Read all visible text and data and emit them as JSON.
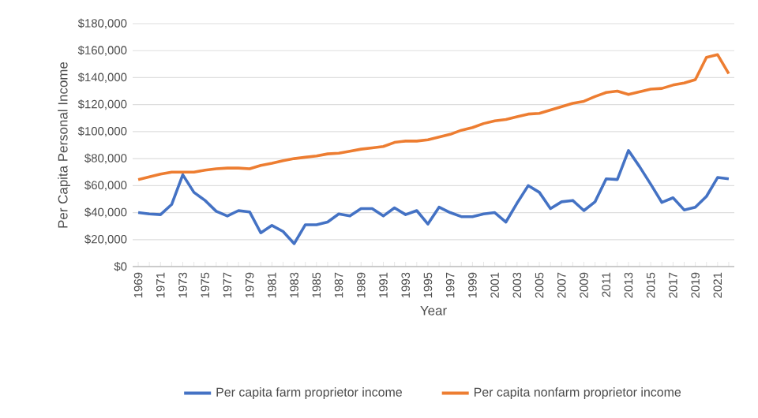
{
  "chart_data": {
    "type": "line",
    "xlabel": "Year",
    "ylabel": "Per Capita Personal Income",
    "categories": [
      "1969",
      null,
      "1971",
      null,
      "1973",
      null,
      "1975",
      null,
      "1977",
      null,
      "1979",
      null,
      "1981",
      null,
      "1983",
      null,
      "1985",
      null,
      "1987",
      null,
      "1989",
      null,
      "1991",
      null,
      "1993",
      null,
      "1995",
      null,
      "1997",
      null,
      "1999",
      null,
      "2001",
      null,
      "2003",
      null,
      "2005",
      null,
      "2007",
      null,
      "2009",
      null,
      "2011",
      null,
      "2013",
      null,
      "2015",
      null,
      "2017",
      null,
      "2019",
      null,
      "2021",
      null
    ],
    "series": [
      {
        "name": "Per capita farm proprietor income",
        "color": "#4472c4",
        "values": [
          40000,
          39000,
          38500,
          46000,
          68000,
          55000,
          49000,
          41000,
          37500,
          41500,
          40500,
          25000,
          30500,
          26000,
          17000,
          31000,
          31000,
          33000,
          39000,
          37500,
          43000,
          43000,
          37500,
          43500,
          38500,
          41500,
          31500,
          44000,
          40000,
          37000,
          37000,
          39000,
          40000,
          33000,
          47000,
          60000,
          55000,
          43000,
          48000,
          49000,
          41500,
          48000,
          65000,
          64500,
          86000,
          74000,
          61000,
          47500,
          51000,
          42000,
          44000,
          52000,
          66000,
          65000
        ]
      },
      {
        "name": "Per capita nonfarm proprietor income",
        "color": "#ed7d31",
        "values": [
          64500,
          66500,
          68500,
          70000,
          70000,
          70000,
          71500,
          72500,
          73000,
          73000,
          72500,
          75000,
          76500,
          78500,
          80000,
          81000,
          82000,
          83500,
          84000,
          85500,
          87000,
          88000,
          89000,
          92000,
          93000,
          93000,
          94000,
          96000,
          98000,
          101000,
          103000,
          106000,
          108000,
          109000,
          111000,
          113000,
          113500,
          116000,
          118500,
          121000,
          122500,
          126000,
          129000,
          130000,
          127500,
          129500,
          131500,
          132000,
          134500,
          136000,
          138500,
          155000,
          157000,
          143000
        ]
      }
    ],
    "ylim": [
      0,
      180000
    ],
    "yticks": [
      {
        "value": 0,
        "label": "$0"
      },
      {
        "value": 20000,
        "label": "$20,000"
      },
      {
        "value": 40000,
        "label": "$40,000"
      },
      {
        "value": 60000,
        "label": "$60,000"
      },
      {
        "value": 80000,
        "label": "$80,000"
      },
      {
        "value": 100000,
        "label": "$100,000"
      },
      {
        "value": 120000,
        "label": "$120,000"
      },
      {
        "value": 140000,
        "label": "$140,000"
      },
      {
        "value": 160000,
        "label": "$160,000"
      },
      {
        "value": 180000,
        "label": "$180,000"
      }
    ],
    "grid": "y",
    "legend": "bottom",
    "marker": "none",
    "line_style": "solid"
  }
}
